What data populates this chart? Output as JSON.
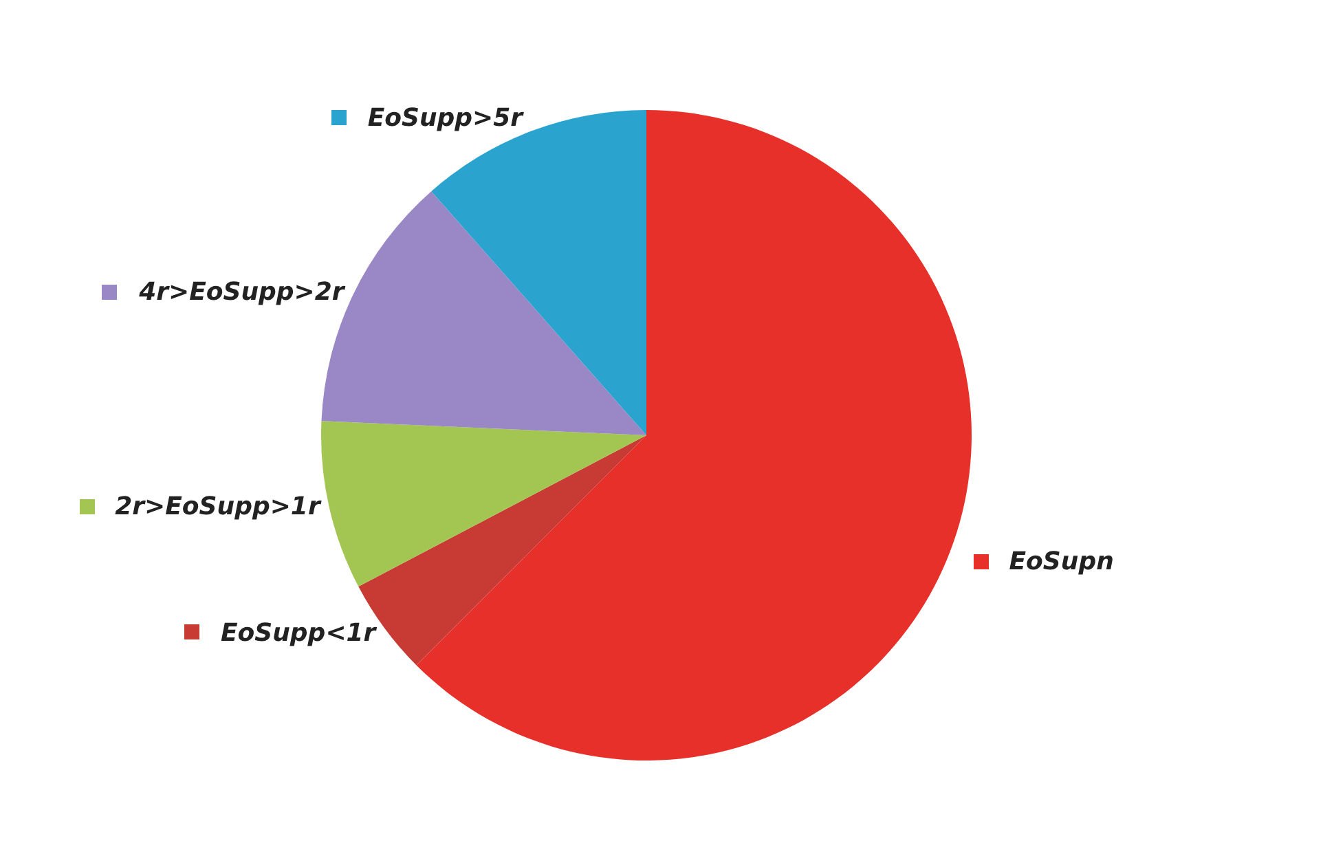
{
  "chart_data": {
    "type": "pie",
    "categories": [
      "EoSupn",
      "EoSupp<1r",
      "2r>EoSupp>1r",
      "4r>EoSupp>2r",
      "EoSupp>5r"
    ],
    "values": [
      62.5,
      4.8,
      8.4,
      12.8,
      11.5
    ],
    "colors": [
      "#e8302a",
      "#c83a34",
      "#a3c653",
      "#9a87c5",
      "#2aa3cf"
    ],
    "legend": "left"
  }
}
